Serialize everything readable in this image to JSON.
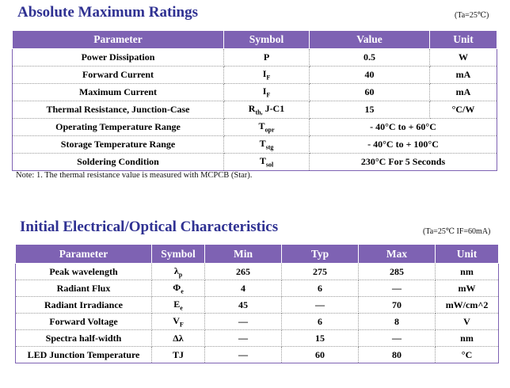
{
  "section1": {
    "title": "Absolute Maximum Ratings",
    "condition": "(Ta=25℃)",
    "headers": [
      "Parameter",
      "Symbol",
      "Value",
      "Unit"
    ],
    "rows": [
      {
        "parameter": "Power Dissipation",
        "symbol": "P",
        "value": "0.5",
        "unit": "W"
      },
      {
        "parameter": "Forward Current",
        "symbol": "IF",
        "value": "40",
        "unit": "mA"
      },
      {
        "parameter": "Maximum Current",
        "symbol": "IF",
        "value": "60",
        "unit": "mA"
      },
      {
        "parameter": "Thermal Resistance, Junction-Case",
        "symbol": "Rth, J-C1",
        "value": "15",
        "unit": "°C/W"
      },
      {
        "parameter": "Operating Temperature Range",
        "symbol": "Topr",
        "value": "- 40°C to + 60°C",
        "unit": ""
      },
      {
        "parameter": "Storage Temperature Range",
        "symbol": "Tstg",
        "value": "- 40°C to + 100°C",
        "unit": ""
      },
      {
        "parameter": "Soldering Condition",
        "symbol": "Tsol",
        "value": "230°C For 5 Seconds",
        "unit": ""
      }
    ],
    "note": "Note: 1. The thermal resistance value is measured with MCPCB (Star)."
  },
  "section2": {
    "title": "Initial Electrical/Optical Characteristics",
    "condition": "(Ta=25℃  IF=60mA)",
    "headers": [
      "Parameter",
      "Symbol",
      "Min",
      "Typ",
      "Max",
      "Unit"
    ],
    "rows": [
      {
        "parameter": "Peak wavelength",
        "symbol": "λp",
        "min": "265",
        "typ": "275",
        "max": "285",
        "unit": "nm"
      },
      {
        "parameter": "Radiant Flux",
        "symbol": "Φe",
        "min": "4",
        "typ": "6",
        "max": "—",
        "unit": "mW"
      },
      {
        "parameter": "Radiant Irradiance",
        "symbol": "Ee",
        "min": "45",
        "typ": "—",
        "max": "70",
        "unit": "mW/cm^2"
      },
      {
        "parameter": "Forward Voltage",
        "symbol": "VF",
        "min": "—",
        "typ": "6",
        "max": "8",
        "unit": "V"
      },
      {
        "parameter": "Spectra half-width",
        "symbol": "Δλ",
        "min": "—",
        "typ": "15",
        "max": "—",
        "unit": "nm"
      },
      {
        "parameter": "LED Junction Temperature",
        "symbol": "TJ",
        "min": "—",
        "typ": "60",
        "max": "80",
        "unit": "°C"
      }
    ]
  }
}
